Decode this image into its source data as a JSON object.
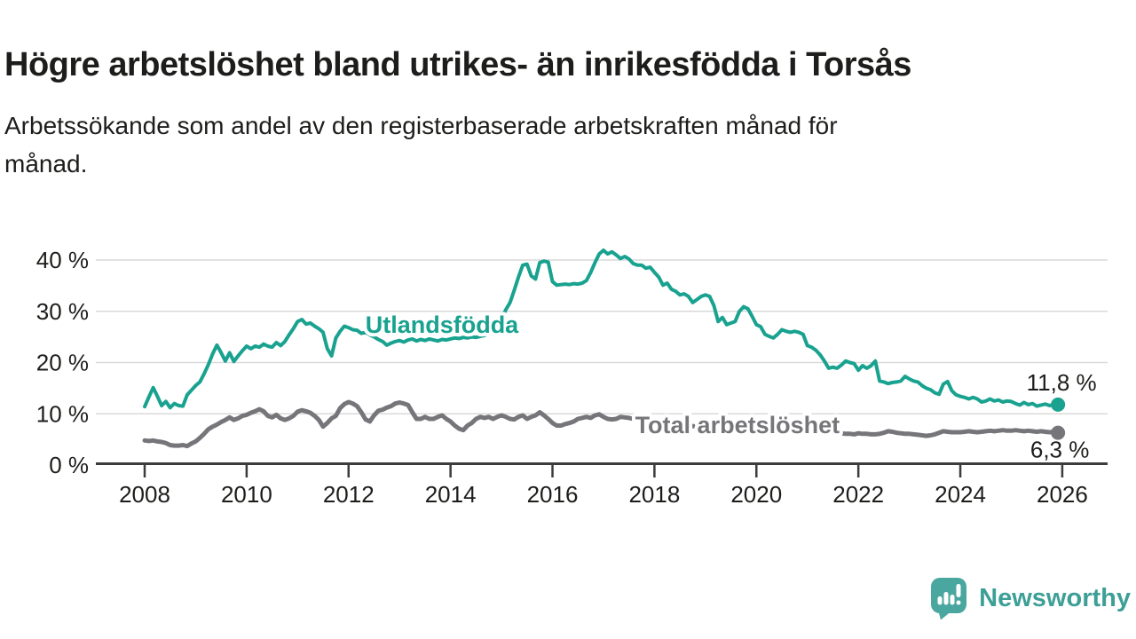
{
  "chart_data": {
    "type": "line",
    "title": "Högre arbetslöshet bland utrikes- än inrikesfödda i Torsås",
    "subtitle_lines": [
      "Arbetssökande som andel av den registerbaserade arbetskraften månad för",
      "månad."
    ],
    "xlabel": "",
    "ylabel": "",
    "xlim": [
      2007.05,
      2026.9
    ],
    "ylim": [
      0,
      43.5
    ],
    "grid": "horizontal",
    "legend": "inline-labels",
    "x_ticks": [
      2008,
      2010,
      2012,
      2014,
      2016,
      2018,
      2020,
      2022,
      2024,
      2026
    ],
    "y_ticks": [
      {
        "value": 0,
        "label": "0 %"
      },
      {
        "value": 10,
        "label": "10 %"
      },
      {
        "value": 20,
        "label": "20 %"
      },
      {
        "value": 30,
        "label": "30 %"
      },
      {
        "value": 40,
        "label": "40 %"
      }
    ],
    "colors": {
      "axis": "#3c3c3c",
      "grid": "#d9d9d9",
      "text": "#1d1d1b"
    },
    "series": [
      {
        "name": "Utlandsfödda",
        "color": "#18a28f",
        "line_width": 4,
        "start_year": 2008.0,
        "months_per_point": 1,
        "inline_label": {
          "year": 2012.33,
          "pct": 25.8
        },
        "end_label": {
          "text": "11,8 %",
          "placement": "above"
        },
        "end_value": 11.8,
        "values": [
          11.4,
          13.3,
          15.1,
          13.4,
          11.6,
          12.4,
          11.2,
          12.0,
          11.6,
          11.5,
          13.7,
          14.6,
          15.5,
          16.2,
          17.8,
          19.6,
          21.7,
          23.4,
          21.9,
          20.3,
          21.9,
          20.2,
          21.3,
          22.3,
          23.2,
          22.7,
          23.2,
          23.0,
          23.6,
          23.2,
          23.0,
          23.9,
          23.3,
          24.1,
          25.4,
          26.6,
          28.0,
          28.4,
          27.5,
          27.7,
          27.1,
          26.6,
          25.9,
          22.7,
          21.3,
          24.8,
          26.1,
          27.1,
          26.8,
          26.4,
          26.3,
          25.7,
          25.9,
          25.4,
          25.0,
          24.5,
          24.1,
          23.4,
          23.8,
          24.1,
          24.3,
          24.0,
          24.4,
          24.6,
          24.2,
          24.5,
          24.3,
          24.6,
          24.4,
          24.2,
          24.5,
          24.4,
          24.6,
          24.8,
          24.7,
          24.9,
          24.8,
          25.0,
          24.9,
          25.1,
          25.3,
          25.6,
          26.2,
          27.3,
          28.5,
          30.3,
          31.7,
          34.1,
          36.7,
          39.0,
          39.2,
          36.9,
          36.3,
          39.5,
          39.8,
          39.6,
          35.8,
          35.1,
          35.2,
          35.3,
          35.2,
          35.4,
          35.3,
          35.5,
          36.0,
          37.6,
          39.5,
          41.2,
          41.9,
          41.2,
          41.6,
          41.0,
          40.3,
          40.7,
          40.2,
          39.3,
          39.0,
          39.0,
          38.4,
          38.6,
          37.6,
          36.7,
          35.1,
          35.5,
          34.3,
          33.9,
          33.2,
          33.4,
          32.9,
          31.7,
          32.3,
          32.9,
          33.2,
          32.9,
          31.1,
          28.0,
          28.8,
          27.4,
          27.7,
          28.0,
          30.0,
          30.9,
          30.5,
          29.0,
          27.4,
          27.0,
          25.5,
          25.1,
          24.8,
          25.5,
          26.4,
          26.1,
          25.9,
          26.1,
          25.9,
          25.5,
          23.3,
          23.0,
          22.4,
          21.5,
          20.3,
          18.9,
          19.1,
          18.9,
          19.5,
          20.3,
          20.0,
          19.8,
          18.5,
          19.4,
          18.9,
          19.4,
          20.3,
          16.4,
          16.2,
          15.9,
          16.1,
          16.2,
          16.4,
          17.3,
          16.8,
          16.4,
          16.2,
          15.5,
          15.0,
          14.7,
          14.1,
          13.8,
          15.8,
          16.3,
          14.5,
          13.7,
          13.4,
          13.2,
          12.9,
          13.2,
          12.9,
          12.3,
          12.5,
          12.9,
          12.5,
          12.7,
          12.3,
          12.5,
          12.4,
          12.0,
          11.7,
          12.2,
          11.8,
          12.0,
          11.5,
          11.7,
          11.9,
          11.6,
          11.8,
          11.8
        ]
      },
      {
        "name": "Total arbetslöshet",
        "color": "#76767a",
        "line_width": 5,
        "start_year": 2008.0,
        "months_per_point": 1,
        "inline_label": {
          "year": 2017.62,
          "pct": 6.2
        },
        "end_label": {
          "text": "6,3 %",
          "placement": "below"
        },
        "end_value": 6.3,
        "values": [
          4.8,
          4.7,
          4.8,
          4.6,
          4.5,
          4.3,
          3.9,
          3.8,
          3.8,
          3.9,
          3.7,
          4.2,
          4.6,
          5.3,
          6.1,
          7.0,
          7.5,
          7.9,
          8.4,
          8.8,
          9.3,
          8.8,
          9.1,
          9.6,
          9.8,
          10.2,
          10.5,
          10.9,
          10.5,
          9.6,
          9.3,
          9.8,
          9.1,
          8.8,
          9.1,
          9.6,
          10.4,
          10.7,
          10.5,
          10.2,
          9.6,
          8.8,
          7.5,
          8.2,
          9.1,
          9.6,
          11.1,
          11.9,
          12.3,
          12.0,
          11.5,
          10.3,
          8.9,
          8.5,
          9.7,
          10.6,
          10.8,
          11.2,
          11.5,
          12.0,
          12.2,
          12.0,
          11.7,
          10.3,
          9.0,
          9.0,
          9.4,
          9.0,
          9.0,
          9.4,
          9.7,
          9.0,
          8.5,
          7.7,
          7.1,
          6.8,
          7.7,
          8.2,
          9.0,
          9.4,
          9.2,
          9.4,
          9.0,
          9.4,
          9.7,
          9.4,
          9.0,
          8.9,
          9.4,
          9.7,
          9.0,
          9.4,
          9.7,
          10.3,
          9.7,
          9.0,
          8.2,
          7.7,
          7.7,
          8.0,
          8.2,
          8.5,
          9.0,
          9.2,
          9.4,
          9.2,
          9.7,
          9.9,
          9.4,
          9.0,
          8.9,
          9.0,
          9.4,
          9.3,
          9.2,
          9.0,
          8.9,
          8.8,
          8.7,
          8.6,
          8.5,
          8.4,
          8.3,
          8.2,
          8.1,
          8.0,
          7.9,
          7.8,
          7.7,
          7.6,
          7.5,
          7.4,
          7.3,
          7.2,
          7.1,
          7.0,
          6.9,
          6.9,
          6.8,
          6.8,
          6.7,
          6.7,
          6.6,
          6.6,
          6.8,
          7.0,
          7.3,
          7.6,
          7.8,
          7.9,
          7.8,
          7.7,
          7.5,
          7.3,
          7.1,
          7.0,
          6.9,
          6.8,
          6.7,
          6.6,
          6.5,
          6.4,
          6.3,
          6.2,
          6.2,
          6.1,
          6.1,
          6.0,
          6.2,
          6.1,
          6.1,
          6.0,
          6.0,
          6.1,
          6.3,
          6.6,
          6.5,
          6.3,
          6.2,
          6.1,
          6.1,
          6.0,
          5.9,
          5.8,
          5.7,
          5.8,
          6.0,
          6.3,
          6.6,
          6.5,
          6.4,
          6.4,
          6.4,
          6.5,
          6.6,
          6.5,
          6.4,
          6.5,
          6.6,
          6.7,
          6.6,
          6.7,
          6.8,
          6.7,
          6.7,
          6.8,
          6.7,
          6.6,
          6.7,
          6.6,
          6.5,
          6.6,
          6.5,
          6.4,
          6.5,
          6.3
        ]
      }
    ]
  },
  "branding": {
    "wordmark": "Newsworthy",
    "logo_icon": "newsworthy-speech-bubble-chart-icon",
    "icon_color": "#4aa79f",
    "text_color": "#3e9f97"
  }
}
